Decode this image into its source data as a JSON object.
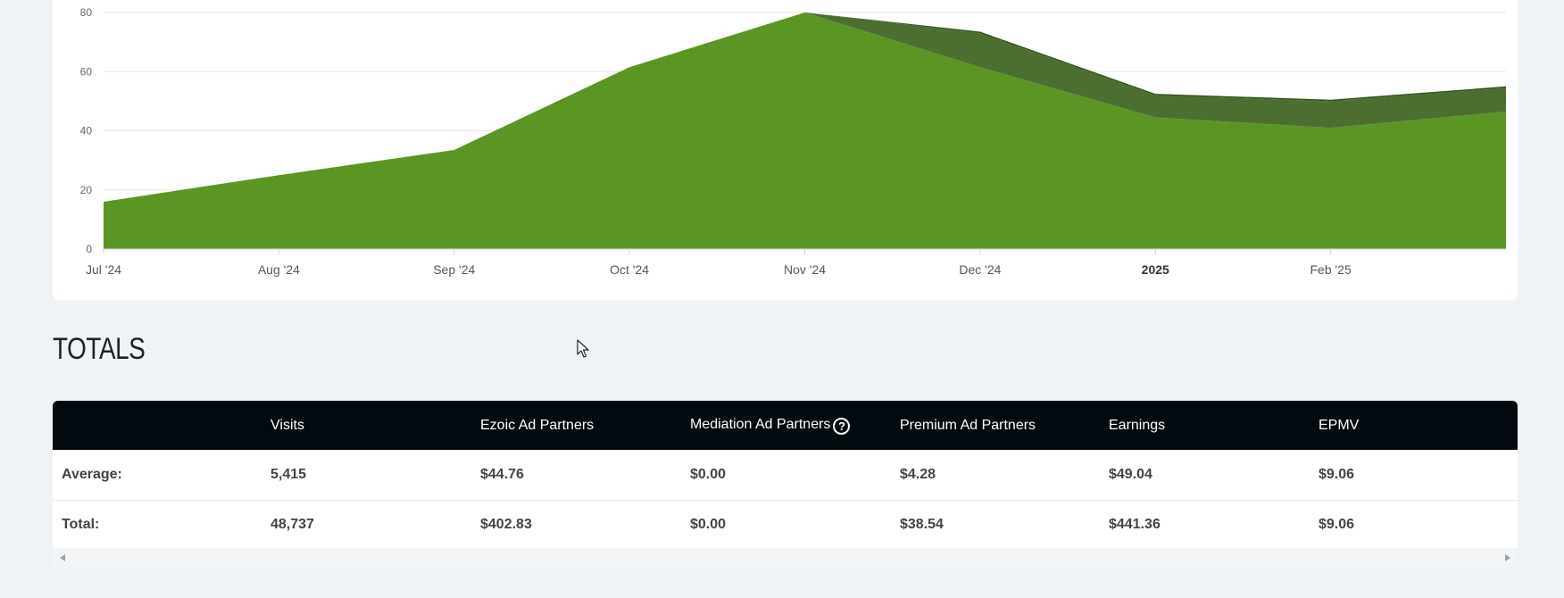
{
  "chart_data": {
    "type": "area",
    "stacked": true,
    "categories": [
      "Jul '24",
      "Aug '24",
      "Sep '24",
      "Oct '24",
      "Nov '24",
      "Dec '24",
      "2025",
      "Feb '25",
      ""
    ],
    "tick_labels": [
      "Jul '24",
      "Aug '24",
      "Sep '24",
      "Oct '24",
      "Nov '24",
      "Dec '24",
      "2025",
      "Feb '25"
    ],
    "y_ticks": [
      0,
      20,
      40,
      60,
      80
    ],
    "ylim": [
      0,
      80
    ],
    "grid": true,
    "series": [
      {
        "values": [
          16,
          25,
          33.5,
          61.5,
          80,
          61.5,
          44.5,
          41,
          46.5
        ],
        "color": "#5b9625"
      },
      {
        "values": [
          0,
          0,
          0,
          0,
          0,
          11.5,
          7.5,
          9,
          8
        ],
        "color": "#4d6e31"
      },
      {
        "values": [
          0,
          0,
          0,
          0,
          0,
          0.5,
          0.5,
          0.5,
          0.5
        ],
        "color": "#2f5417"
      }
    ]
  },
  "totals": {
    "title": "TOTALS",
    "columns": [
      "",
      "Visits",
      "Ezoic Ad Partners",
      "Mediation Ad Partners",
      "Premium Ad Partners",
      "Earnings",
      "EPMV"
    ],
    "help_icon": "?",
    "rows": [
      [
        "Average:",
        "5,415",
        "$44.76",
        "$0.00",
        "$4.28",
        "$49.04",
        "$9.06"
      ],
      [
        "Total:",
        "48,737",
        "$402.83",
        "$0.00",
        "$38.54",
        "$441.36",
        "$9.06"
      ]
    ]
  },
  "icons": {
    "cursor": "mouse-pointer-icon",
    "help": "question-circle-icon"
  }
}
